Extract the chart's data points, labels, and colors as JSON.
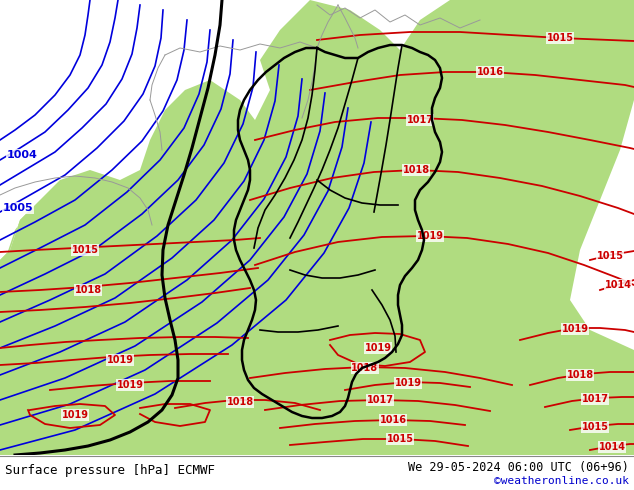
{
  "title_left": "Surface pressure [hPa] ECMWF",
  "title_right": "We 29-05-2024 06:00 UTC (06+96)",
  "credit": "©weatheronline.co.uk",
  "credit_color": "#0000cc",
  "land_color": "#b0dc80",
  "sea_color": "#c8d0dc",
  "border_color_country": "#888888",
  "border_color_germany": "#000000",
  "blue": "#0000dd",
  "red": "#cc0000",
  "black": "#000000",
  "fig_width": 6.34,
  "fig_height": 4.9,
  "dpi": 100
}
